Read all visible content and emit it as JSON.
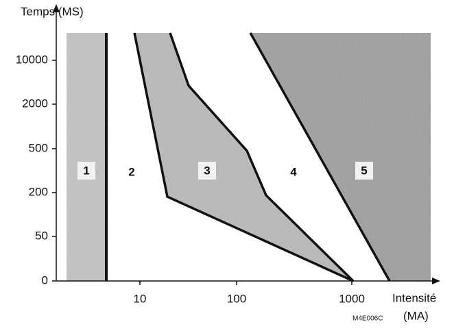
{
  "y_axis": {
    "title": "Temps (MS)",
    "ticks": [
      "0",
      "50",
      "200",
      "500",
      "2000",
      "10000"
    ]
  },
  "x_axis": {
    "title": "Intensité",
    "unit": "(MA)",
    "ticks": [
      "10",
      "100",
      "1000"
    ]
  },
  "zones": [
    {
      "label": "1"
    },
    {
      "label": "2"
    },
    {
      "label": "3"
    },
    {
      "label": "4"
    },
    {
      "label": "5"
    }
  ],
  "figure_code": "M4E006C"
}
